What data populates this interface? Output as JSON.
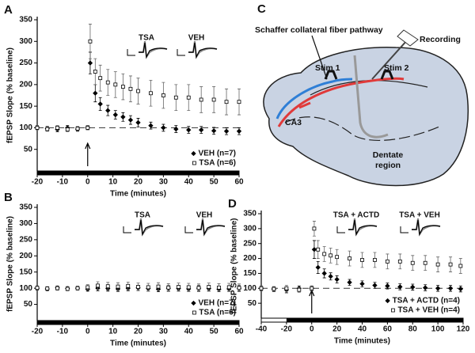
{
  "chart_data": [
    {
      "panel_label": "A",
      "type": "scatter",
      "x_label": "Time (minutes)",
      "y_label": "fEPSP Slope (% baseline)",
      "x": [
        -20,
        -16,
        -12,
        -8,
        -4,
        0,
        1,
        3,
        5,
        8,
        11,
        14,
        17,
        20,
        25,
        30,
        35,
        40,
        45,
        50,
        55,
        60
      ],
      "xlim": [
        -20,
        60
      ],
      "xticks": [
        -20,
        -10,
        0,
        10,
        20,
        30,
        40,
        50,
        60
      ],
      "ylim": [
        0,
        350
      ],
      "yticks": [
        50,
        100,
        150,
        200,
        250,
        300,
        350
      ],
      "reference_line": 100,
      "arrow_x": 0,
      "treatment_bar": [
        -20,
        60
      ],
      "legend": "lower right",
      "inset_labels": [
        "TSA",
        "VEH"
      ],
      "series": [
        {
          "name": "VEH (n=7)",
          "marker": "diamond",
          "filled": true,
          "color": "#000000",
          "values": [
            100,
            98,
            96,
            100,
            97,
            100,
            250,
            180,
            155,
            140,
            130,
            125,
            118,
            112,
            105,
            100,
            97,
            95,
            95,
            93,
            92,
            92
          ],
          "errors": [
            5,
            5,
            5,
            5,
            5,
            5,
            25,
            20,
            15,
            12,
            10,
            10,
            10,
            10,
            8,
            8,
            8,
            8,
            8,
            8,
            8,
            8
          ]
        },
        {
          "name": "TSA (n=6)",
          "marker": "square",
          "filled": false,
          "color": "#000000",
          "values": [
            100,
            97,
            100,
            96,
            98,
            100,
            300,
            230,
            215,
            205,
            200,
            195,
            190,
            185,
            180,
            175,
            170,
            170,
            165,
            165,
            160,
            160
          ],
          "errors": [
            5,
            5,
            5,
            5,
            5,
            5,
            40,
            30,
            30,
            30,
            30,
            30,
            30,
            30,
            30,
            30,
            30,
            30,
            30,
            30,
            30,
            30
          ]
        }
      ]
    },
    {
      "panel_label": "B",
      "type": "scatter",
      "x_label": "Time (minutes)",
      "y_label": "fEPSP Slope (% baseline)",
      "x": [
        -20,
        -16,
        -12,
        -8,
        -4,
        0,
        4,
        8,
        12,
        16,
        20,
        24,
        28,
        32,
        36,
        40,
        44,
        48,
        52,
        56,
        60
      ],
      "xlim": [
        -20,
        60
      ],
      "xticks": [
        -20,
        -10,
        0,
        10,
        20,
        30,
        40,
        50,
        60
      ],
      "ylim": [
        0,
        350
      ],
      "yticks": [
        50,
        100,
        150,
        200,
        250,
        300,
        350
      ],
      "treatment_bar": [
        -20,
        60
      ],
      "legend": "lower right",
      "inset_labels": [
        "TSA",
        "VEH"
      ],
      "series": [
        {
          "name": "VEH (n=7)",
          "marker": "diamond",
          "filled": true,
          "color": "#000000",
          "values": [
            100,
            98,
            101,
            99,
            100,
            97,
            100,
            99,
            98,
            100,
            101,
            99,
            97,
            100,
            99,
            98,
            100,
            99,
            97,
            98,
            100
          ],
          "errors": [
            6,
            6,
            6,
            6,
            6,
            6,
            8,
            8,
            8,
            8,
            8,
            8,
            8,
            8,
            8,
            8,
            8,
            8,
            8,
            8,
            8
          ]
        },
        {
          "name": "TSA (n=6)",
          "marker": "square",
          "filled": false,
          "color": "#000000",
          "values": [
            101,
            99,
            100,
            98,
            100,
            103,
            108,
            106,
            105,
            107,
            104,
            103,
            105,
            102,
            104,
            103,
            101,
            104,
            102,
            103,
            101
          ],
          "errors": [
            6,
            6,
            6,
            6,
            6,
            8,
            12,
            12,
            12,
            12,
            12,
            12,
            12,
            12,
            12,
            12,
            12,
            12,
            12,
            12,
            12
          ]
        }
      ]
    },
    {
      "panel_label": "D",
      "type": "scatter",
      "x_label": "Time (minutes)",
      "y_label": "fEPSP Slope (% baseline)",
      "x": [
        -40,
        -30,
        -20,
        -10,
        0,
        2,
        5,
        10,
        15,
        20,
        30,
        40,
        50,
        60,
        70,
        80,
        90,
        100,
        110,
        118
      ],
      "xlim": [
        -40,
        120
      ],
      "xticks": [
        -40,
        -20,
        0,
        20,
        40,
        60,
        80,
        100,
        120
      ],
      "ylim": [
        0,
        350
      ],
      "yticks": [
        50,
        100,
        150,
        200,
        250,
        300,
        350
      ],
      "reference_line": 100,
      "arrow_x": 0,
      "treatment_bar": [
        -20,
        120
      ],
      "legend": "lower right",
      "inset_labels": [
        "TSA + ACTD",
        "TSA + VEH"
      ],
      "series": [
        {
          "name": "TSA + ACTD (n=4)",
          "marker": "diamond",
          "filled": true,
          "color": "#000000",
          "values": [
            100,
            97,
            95,
            100,
            100,
            230,
            170,
            150,
            140,
            130,
            120,
            115,
            110,
            108,
            105,
            104,
            102,
            100,
            100,
            98
          ],
          "errors": [
            8,
            8,
            10,
            8,
            8,
            30,
            20,
            15,
            12,
            12,
            10,
            10,
            10,
            10,
            10,
            10,
            10,
            10,
            10,
            10
          ]
        },
        {
          "name": "TSA + VEH (n=4)",
          "marker": "square",
          "filled": false,
          "color": "#000000",
          "values": [
            100,
            98,
            100,
            95,
            100,
            300,
            230,
            215,
            210,
            205,
            200,
            195,
            195,
            190,
            190,
            185,
            185,
            180,
            180,
            175
          ],
          "errors": [
            8,
            8,
            10,
            8,
            8,
            25,
            30,
            25,
            25,
            25,
            25,
            25,
            25,
            25,
            25,
            25,
            25,
            25,
            25,
            25
          ]
        }
      ]
    }
  ],
  "diagram": {
    "panel_label": "C",
    "pathway": "Schaffer collateral fiber pathway",
    "recording": "Recording",
    "stim1": "Stim 1",
    "stim2": "Stim 2",
    "ca3": "CA3",
    "dentate": [
      "Dentate",
      "region"
    ]
  }
}
